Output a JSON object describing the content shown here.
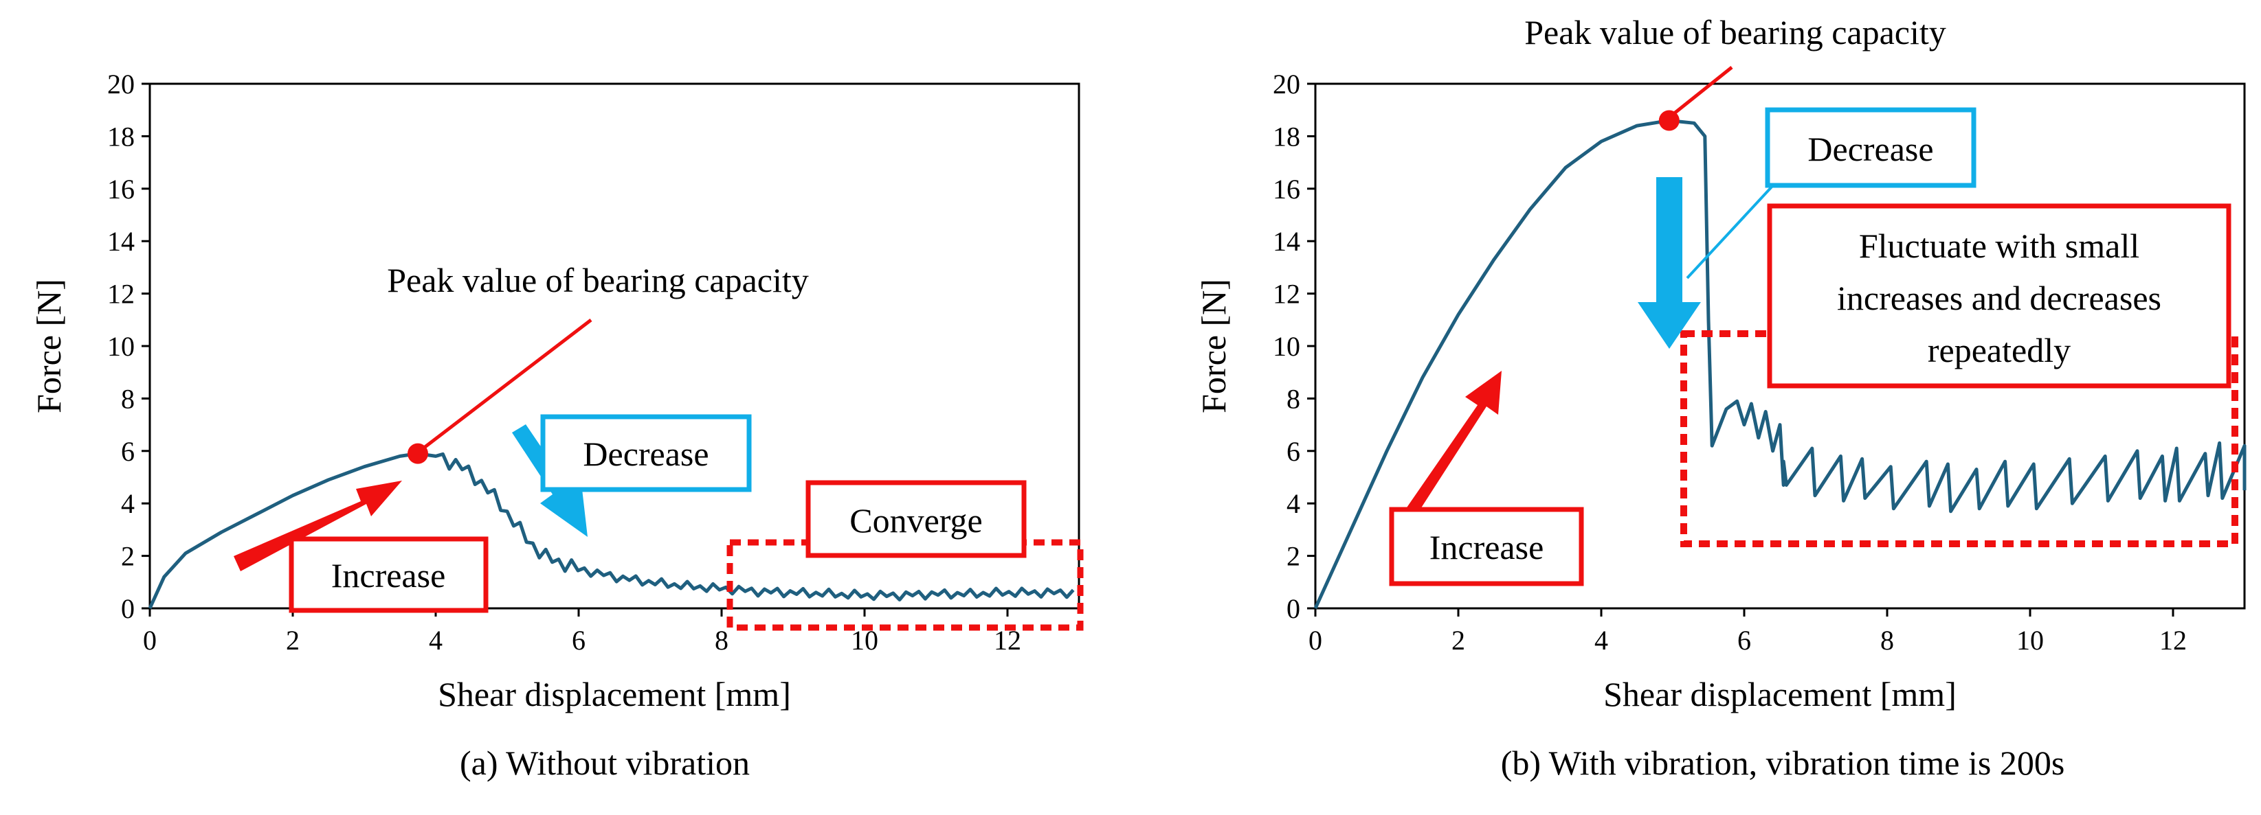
{
  "colors": {
    "line": "#1f5f7f",
    "red": "#ef1010",
    "blue": "#11aee8",
    "frame": "#000000"
  },
  "chart_data": [
    {
      "id": "a",
      "type": "line",
      "caption": "(a) Without vibration",
      "xlabel": "Shear displacement [mm]",
      "ylabel": "Force [N]",
      "xlim": [
        0,
        13
      ],
      "ylim": [
        0,
        20
      ],
      "xticks": [
        0,
        2,
        4,
        6,
        8,
        10,
        12
      ],
      "yticks": [
        0,
        2,
        4,
        6,
        8,
        10,
        12,
        14,
        16,
        18,
        20
      ],
      "grid": false,
      "series": [
        {
          "name": "Force",
          "x": [
            0,
            0.2,
            0.5,
            1.0,
            1.5,
            2.0,
            2.5,
            3.0,
            3.5,
            3.75,
            4.0,
            4.3,
            4.6,
            4.9,
            5.2,
            5.5,
            6.0,
            6.5,
            7.0,
            7.5,
            8.0,
            8.5,
            9.0,
            9.5,
            10.0,
            10.5,
            11.0,
            11.5,
            12.0,
            12.5,
            13.0
          ],
          "y": [
            0,
            1.2,
            2.1,
            2.9,
            3.6,
            4.3,
            4.9,
            5.4,
            5.8,
            5.9,
            5.8,
            5.5,
            4.9,
            4.0,
            2.9,
            2.0,
            1.5,
            1.2,
            1.0,
            0.85,
            0.75,
            0.65,
            0.6,
            0.55,
            0.5,
            0.5,
            0.55,
            0.55,
            0.6,
            0.6,
            0.6
          ],
          "jitter": {
            "from": 4.1,
            "to": 13.0,
            "step": 0.09,
            "amp": 0.25
          }
        }
      ],
      "peak": {
        "x": 3.75,
        "y": 5.9
      },
      "annotations": [
        {
          "text": "Peak value of bearing capacity",
          "role": "peak-label"
        },
        {
          "text": "Decrease",
          "role": "decrease-label"
        },
        {
          "text": "Increase",
          "role": "increase-label"
        },
        {
          "text": "Converge",
          "role": "converge-label"
        }
      ]
    },
    {
      "id": "b",
      "type": "line",
      "caption": "(b) With vibration, vibration time is 200s",
      "xlabel": "Shear displacement [mm]",
      "ylabel": "Force [N]",
      "xlim": [
        0,
        13
      ],
      "ylim": [
        0,
        20
      ],
      "xticks": [
        0,
        2,
        4,
        6,
        8,
        10,
        12
      ],
      "yticks": [
        0,
        2,
        4,
        6,
        8,
        10,
        12,
        14,
        16,
        18,
        20
      ],
      "grid": false,
      "series": [
        {
          "name": "Force",
          "x": [
            0,
            0.5,
            1.0,
            1.5,
            2.0,
            2.5,
            3.0,
            3.5,
            4.0,
            4.5,
            4.95,
            5.3,
            5.45,
            5.5,
            5.55,
            5.75,
            5.9,
            6.0,
            6.1,
            6.2,
            6.3,
            6.4,
            6.5,
            6.55
          ],
          "y": [
            0,
            3.0,
            6.0,
            8.8,
            11.2,
            13.3,
            15.2,
            16.8,
            17.8,
            18.4,
            18.6,
            18.5,
            18.0,
            11.0,
            6.2,
            7.6,
            7.9,
            7.0,
            7.8,
            6.5,
            7.5,
            6.0,
            7.0,
            4.7
          ],
          "sawtooth": {
            "peaks": [
              6.55,
              6.95,
              7.35,
              7.65,
              8.05,
              8.55,
              8.85,
              9.25,
              9.65,
              10.05,
              10.55,
              11.05,
              11.5,
              11.85,
              12.05,
              12.45,
              12.65,
              13.0
            ],
            "peakY": [
              5.6,
              6.1,
              5.8,
              5.7,
              5.4,
              5.6,
              5.5,
              5.3,
              5.6,
              5.5,
              5.7,
              5.8,
              6.0,
              5.8,
              6.1,
              5.9,
              6.3,
              6.2
            ],
            "lowY": [
              4.7,
              4.3,
              4.1,
              4.2,
              3.8,
              3.9,
              3.7,
              3.8,
              3.9,
              3.8,
              4.0,
              4.1,
              4.2,
              4.1,
              4.1,
              4.3,
              4.2,
              4.5
            ]
          }
        }
      ],
      "peak": {
        "x": 4.95,
        "y": 18.6
      },
      "annotations": [
        {
          "text": "Peak value of bearing capacity",
          "role": "peak-label"
        },
        {
          "text": "Decrease",
          "role": "decrease-label"
        },
        {
          "text": "Increase",
          "role": "increase-label"
        },
        {
          "text": "Fluctuate with small",
          "role": "fluctuate-line-1"
        },
        {
          "text": "increases and decreases",
          "role": "fluctuate-line-2"
        },
        {
          "text": "repeatedly",
          "role": "fluctuate-line-3"
        }
      ]
    }
  ]
}
